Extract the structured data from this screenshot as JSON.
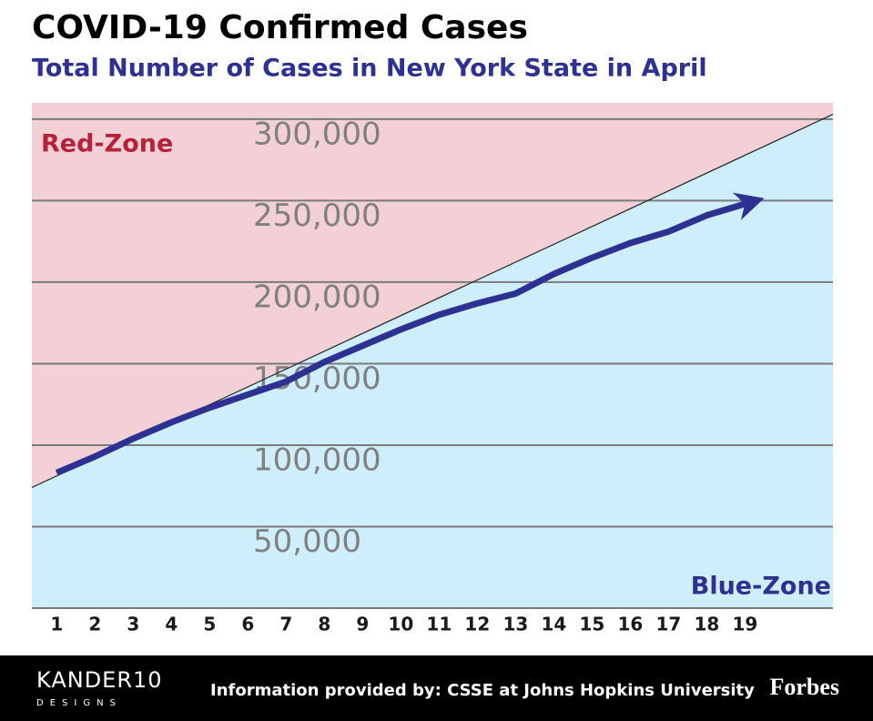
{
  "chart_data": {
    "type": "line",
    "title": "COVID-19 Confirmed Cases",
    "subtitle": "Total Number of Cases in New York State in April",
    "x": [
      1,
      2,
      3,
      4,
      5,
      6,
      7,
      8,
      9,
      10,
      11,
      12,
      13,
      14,
      15,
      16,
      17,
      18,
      19
    ],
    "series": [
      {
        "color": "#2e3192",
        "values": [
          83000,
          93000,
          104000,
          114000,
          123000,
          131000,
          139000,
          151000,
          161000,
          171000,
          180000,
          187000,
          193000,
          205000,
          215000,
          224000,
          231000,
          241000,
          248000
        ]
      }
    ],
    "xlim": [
      0.35,
      21.3
    ],
    "xticks": [
      1,
      2,
      3,
      4,
      5,
      6,
      7,
      8,
      9,
      10,
      11,
      12,
      13,
      14,
      15,
      16,
      17,
      18,
      19
    ],
    "ylim": [
      0,
      310000
    ],
    "yticks": [
      {
        "value": 50000,
        "label": "50,000"
      },
      {
        "value": 100000,
        "label": "100,000"
      },
      {
        "value": 150000,
        "label": "150,000"
      },
      {
        "value": 200000,
        "label": "200,000"
      },
      {
        "value": 250000,
        "label": "250,000"
      },
      {
        "value": 300000,
        "label": "300,000"
      }
    ],
    "grid": true,
    "reference_line": {
      "x": [
        0.35,
        21.3
      ],
      "y": [
        74000,
        303000
      ]
    },
    "zones": {
      "above": {
        "label": "Red-Zone",
        "color": "#f2d0d6"
      },
      "below": {
        "label": "Blue-Zone",
        "color": "#cdeefa"
      }
    }
  },
  "footer": {
    "designer": "KANDER10",
    "designer_sub": "DESIGNS",
    "source": "Information provided by: CSSE at Johns Hopkins University",
    "brand": "Forbes"
  }
}
